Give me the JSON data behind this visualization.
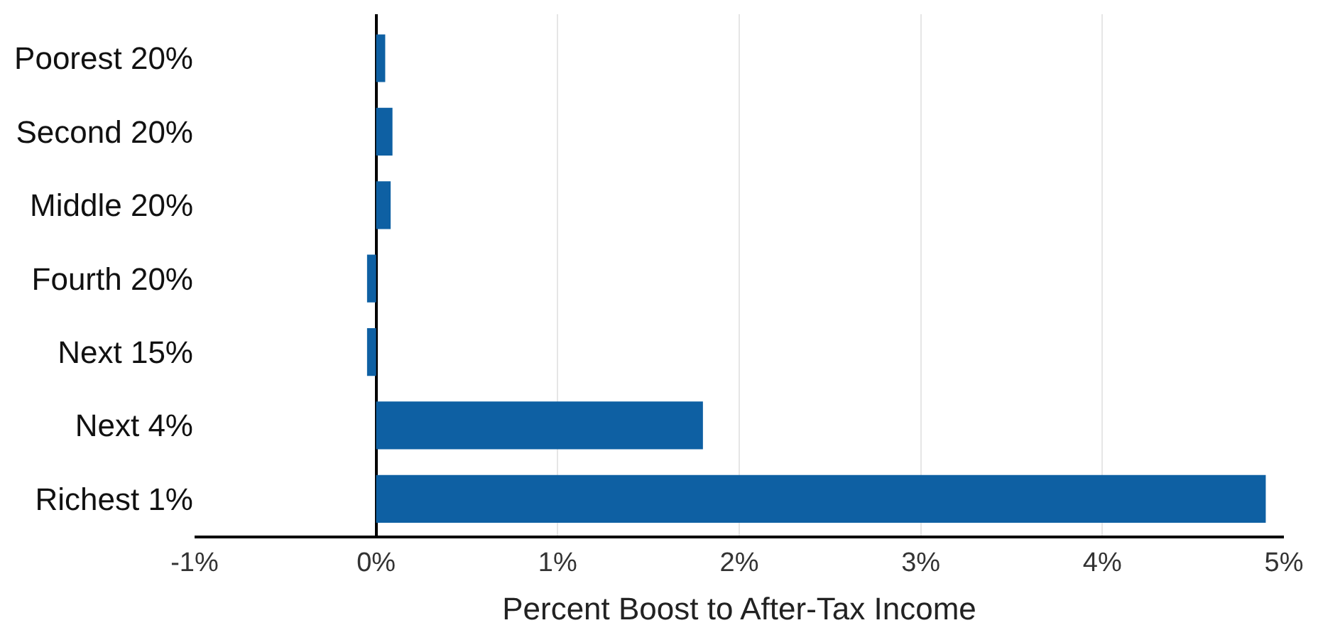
{
  "chart_data": {
    "type": "bar",
    "orientation": "horizontal",
    "xlabel": "Percent Boost to After-Tax Income",
    "categories": [
      "Poorest 20%",
      "Second 20%",
      "Middle 20%",
      "Fourth 20%",
      "Next 15%",
      "Next 4%",
      "Richest 1%"
    ],
    "values": [
      0.05,
      0.09,
      0.08,
      -0.05,
      -0.05,
      1.8,
      4.9
    ],
    "color": "#0e60a3",
    "xlim": [
      -1,
      5
    ],
    "xticks": [
      {
        "value": -1,
        "label": "-1%"
      },
      {
        "value": 0,
        "label": "0%"
      },
      {
        "value": 1,
        "label": "1%"
      },
      {
        "value": 2,
        "label": "2%"
      },
      {
        "value": 3,
        "label": "3%"
      },
      {
        "value": 4,
        "label": "4%"
      },
      {
        "value": 5,
        "label": "5%"
      }
    ],
    "grid": "x",
    "legend": false
  }
}
